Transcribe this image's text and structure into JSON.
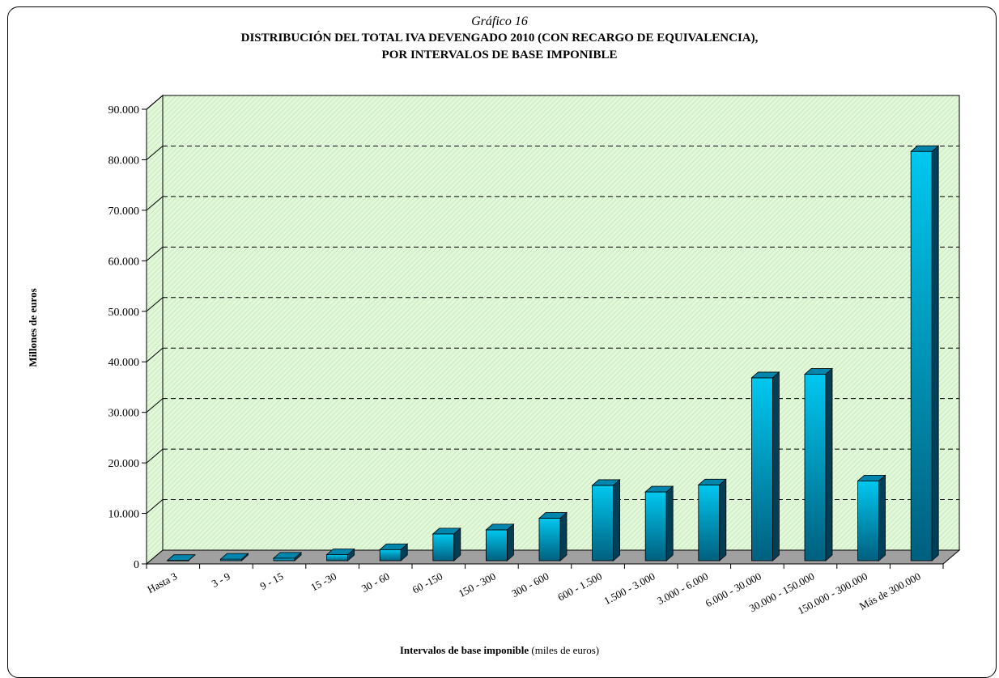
{
  "figure": {
    "caption": "Gráfico 16",
    "title_line1": "DISTRIBUCIÓN DEL TOTAL IVA DEVENGADO 2010 (CON RECARGO DE EQUIVALENCIA),",
    "title_line2": "POR INTERVALOS DE BASE IMPONIBLE"
  },
  "chart_data": {
    "type": "bar",
    "title": "DISTRIBUCIÓN DEL TOTAL IVA DEVENGADO 2010 (CON RECARGO DE EQUIVALENCIA), POR INTERVALOS DE BASE IMPONIBLE",
    "xlabel_bold": "Intervalos de base imponible",
    "xlabel_rest": "(miles de euros)",
    "ylabel": "Millones de euros",
    "ylim": [
      0,
      90000
    ],
    "yticks": [
      "0",
      "10.000",
      "20.000",
      "30.000",
      "40.000",
      "50.000",
      "60.000",
      "70.000",
      "80.000",
      "90.000"
    ],
    "categories": [
      "Hasta 3",
      "3 - 9",
      "9 - 15",
      "15 -30",
      "30 - 60",
      "60 -150",
      "150 - 300",
      "300 - 600",
      "600 - 1.500",
      "1.500 - 3.000",
      "3.000 - 6.000",
      "6.000 - 30.000",
      "30.000 - 150.000",
      "150.000 - 300.000",
      "Más de 300.000"
    ],
    "values": [
      50,
      300,
      500,
      1200,
      2200,
      5300,
      6100,
      8400,
      14900,
      13600,
      15000,
      36200,
      36900,
      15800,
      81000
    ],
    "grid": true,
    "legend": "none",
    "colors": {
      "bar_light": "#00c8f0",
      "bar_dark": "#005f7e",
      "bar_top": "#0086ad",
      "bar_side": "#003f56",
      "plot_bg": "#e4f8dc",
      "floor": "#a0a0a0"
    }
  }
}
